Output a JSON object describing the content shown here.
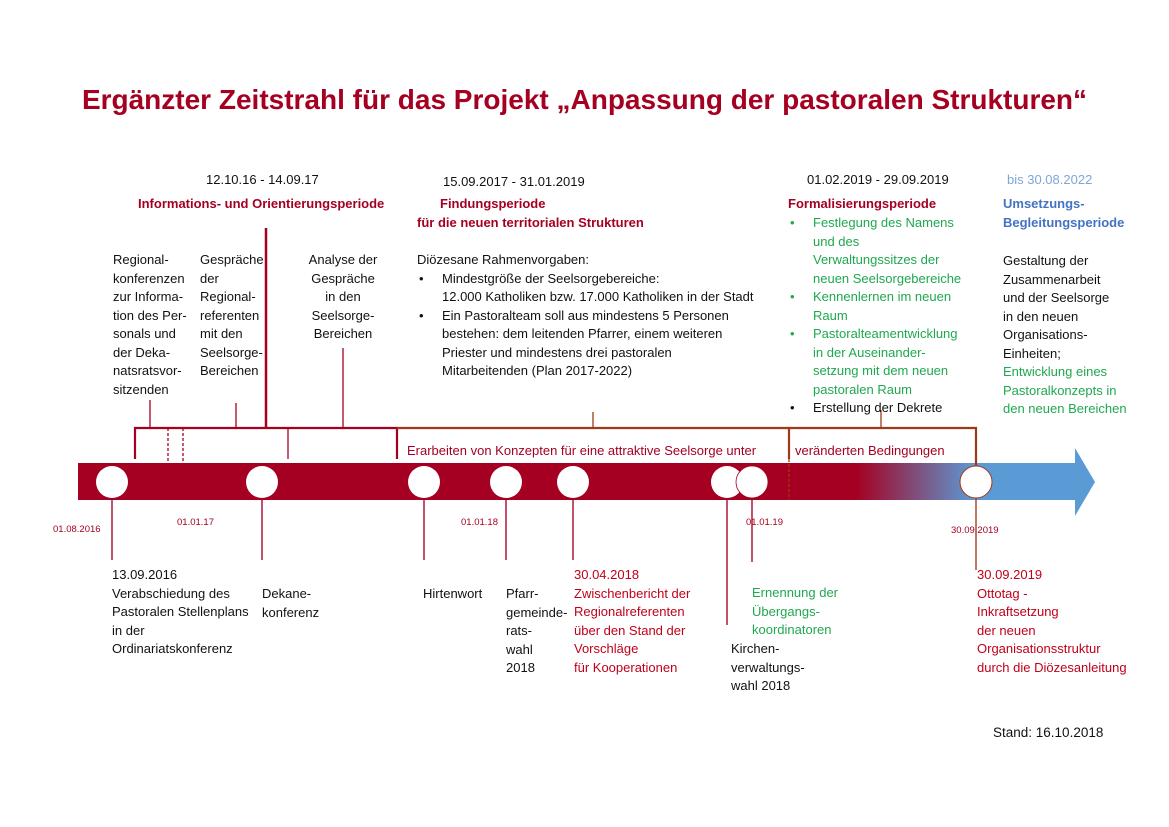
{
  "title": "Ergänzter Zeitstrahl für das Projekt „Anpassung der pastoralen Strukturen“",
  "colors": {
    "primary_red": "#a50021",
    "green": "#1fa84f",
    "blue": "#4472c4",
    "arrow_blue": "#5b9bd5"
  },
  "periods": [
    {
      "dates": "12.10.16 - 14.09.17",
      "name": "Informations- und Orientierungsperiode"
    },
    {
      "dates": "15.09.2017 - 31.01.2019",
      "name": "Findungsperiode",
      "subtitle": "für die neuen territorialen Strukturen"
    },
    {
      "dates": "01.02.2019 - 29.09.2019",
      "name": "Formalisierungsperiode"
    },
    {
      "dates": "bis 30.08.2022",
      "name_line1": "Umsetzungs-",
      "name_line2": "Begleitungsperiode"
    }
  ],
  "period1_items": [
    [
      "Regional-",
      "konferenzen",
      "zur Informa-",
      "tion des Per-",
      "sonals und",
      "der Deka-",
      "natsratsvor-",
      "sitzenden"
    ],
    [
      "Gespräche",
      "der",
      "Regional-",
      "referenten",
      "mit den",
      "Seelsorge-",
      "Bereichen"
    ],
    [
      "Analyse der",
      "Gespräche",
      "in den",
      "Seelsorge-",
      "Bereichen"
    ]
  ],
  "period2_content": {
    "heading": "Diözesane Rahmenvorgaben:",
    "bullets": [
      [
        "Mindestgröße der Seelsorgebereiche:",
        "12.000 Katholiken bzw. 17.000 Katholiken in der Stadt"
      ],
      [
        "Ein Pastoralteam soll aus mindestens 5 Personen",
        "bestehen: dem leitenden Pfarrer, einem weiteren",
        "Priester und mindestens drei pastoralen",
        "Mitarbeitenden (Plan 2017-2022)"
      ]
    ]
  },
  "period3_bullets": [
    {
      "lines": [
        "Festlegung des Namens",
        "und des",
        "Verwaltungssitzes der",
        "neuen Seelsorgebereiche"
      ],
      "color": "green"
    },
    {
      "lines": [
        "Kennenlernen im neuen",
        "Raum"
      ],
      "color": "green"
    },
    {
      "lines": [
        "Pastoralteamentwicklung",
        "in der Auseinander-",
        "setzung mit dem neuen",
        "pastoralen Raum"
      ],
      "color": "green"
    },
    {
      "lines": [
        "Erstellung der Dekrete"
      ],
      "color": "black"
    }
  ],
  "period4_content": {
    "black_lines": [
      "Gestaltung der",
      "Zusammenarbeit",
      "und der Seelsorge",
      "in den neuen",
      "Organisations-",
      "Einheiten;"
    ],
    "green_lines": [
      "Entwicklung eines",
      "Pastoralkonzepts in",
      "den neuen Bereichen"
    ]
  },
  "bar_label_1": "Erarbeiten von Konzepten für eine attraktive Seelsorge unter",
  "bar_label_2": "veränderten Bedingungen",
  "axis_dates": [
    "01.08.2016",
    "01.01.17",
    "01.01.18",
    "01.01.19",
    "30.09.2019"
  ],
  "events": {
    "e1": [
      "13.09.2016",
      "Verabschiedung des",
      "Pastoralen Stellenplans",
      "in der",
      "Ordinariatskonferenz"
    ],
    "e2": [
      "Dekane-",
      "konferenz"
    ],
    "e3": [
      "Hirtenwort"
    ],
    "e4": [
      "Pfarr-",
      "gemeinde-",
      "rats-",
      "wahl",
      "2018"
    ],
    "e5": [
      "30.04.2018",
      "Zwischenbericht der",
      "Regionalreferenten",
      "über den Stand der",
      "Vorschläge",
      "für Kooperationen"
    ],
    "e6": [
      "Kirchen-",
      "verwaltungs-",
      "wahl 2018"
    ],
    "e7": [
      "Ernennung der",
      "Übergangs-",
      "koordinatoren"
    ],
    "e8": [
      "30.09.2019",
      "Ottotag -",
      "Inkraftsetzung",
      "der neuen",
      "Organisationsstruktur",
      "durch die Diözesanleitung"
    ]
  },
  "stand": "Stand: 16.10.2018"
}
